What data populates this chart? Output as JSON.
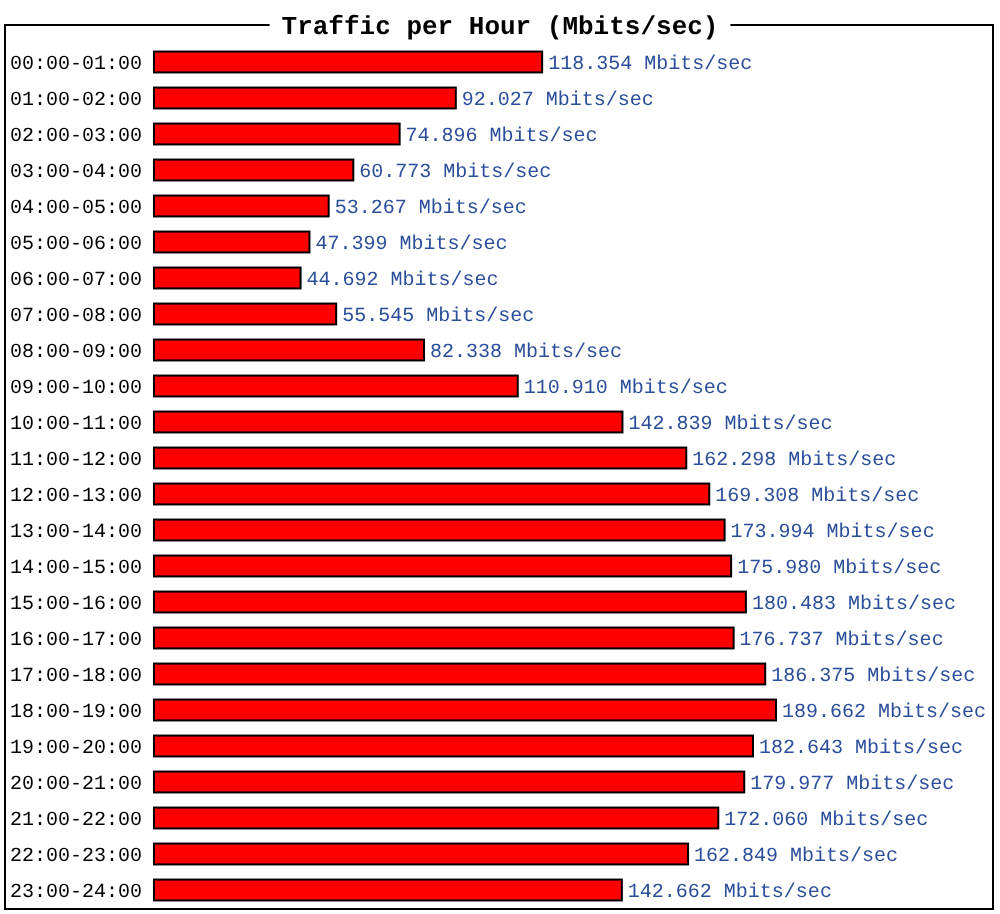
{
  "chart_data": {
    "type": "bar",
    "orientation": "horizontal",
    "title": "Traffic per Hour (Mbits/sec)",
    "color": "#ff0000",
    "categories": [
      "00:00-01:00",
      "01:00-02:00",
      "02:00-03:00",
      "03:00-04:00",
      "04:00-05:00",
      "05:00-06:00",
      "06:00-07:00",
      "07:00-08:00",
      "08:00-09:00",
      "09:00-10:00",
      "10:00-11:00",
      "11:00-12:00",
      "12:00-13:00",
      "13:00-14:00",
      "14:00-15:00",
      "15:00-16:00",
      "16:00-17:00",
      "17:00-18:00",
      "18:00-19:00",
      "19:00-20:00",
      "20:00-21:00",
      "21:00-22:00",
      "22:00-23:00",
      "23:00-24:00"
    ],
    "values": [
      118.354,
      92.027,
      74.896,
      60.773,
      53.267,
      47.399,
      44.692,
      55.545,
      82.338,
      110.91,
      142.839,
      162.298,
      169.308,
      173.994,
      175.98,
      180.483,
      176.737,
      186.375,
      189.662,
      182.643,
      179.977,
      172.06,
      162.849,
      142.662
    ],
    "value_labels": [
      "118.354 Mbits/sec",
      "92.027 Mbits/sec",
      "74.896 Mbits/sec",
      "60.773 Mbits/sec",
      "53.267 Mbits/sec",
      "47.399 Mbits/sec",
      "44.692 Mbits/sec",
      "55.545 Mbits/sec",
      "82.338 Mbits/sec",
      "110.910 Mbits/sec",
      "142.839 Mbits/sec",
      "162.298 Mbits/sec",
      "169.308 Mbits/sec",
      "173.994 Mbits/sec",
      "175.980 Mbits/sec",
      "180.483 Mbits/sec",
      "176.737 Mbits/sec",
      "186.375 Mbits/sec",
      "189.662 Mbits/sec",
      "182.643 Mbits/sec",
      "179.977 Mbits/sec",
      "172.060 Mbits/sec",
      "162.849 Mbits/sec",
      "142.662 Mbits/sec"
    ]
  }
}
